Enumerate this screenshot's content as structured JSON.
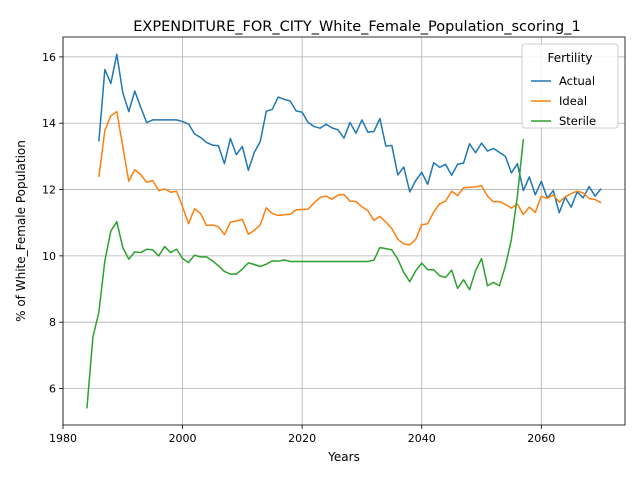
{
  "chart_data": {
    "type": "line",
    "title": "EXPENDITURE_FOR_CITY_White_Female_Population_scoring_1",
    "xlabel": "Years",
    "ylabel": "% of White_Female Population",
    "xlim": [
      1980,
      2074
    ],
    "ylim": [
      4.9,
      16.6
    ],
    "xticks": [
      1980,
      2000,
      2020,
      2040,
      2060
    ],
    "yticks": [
      6,
      8,
      10,
      12,
      14,
      16
    ],
    "grid": true,
    "legend": {
      "title": "Fertility",
      "placement": "top-right"
    },
    "series": [
      {
        "name": "Actual",
        "color": "#1f77b4",
        "x": [
          1986,
          1987,
          1988,
          1989,
          1990,
          1991,
          1992,
          1993,
          1994,
          1995,
          1996,
          1997,
          1998,
          1999,
          2000,
          2001,
          2002,
          2003,
          2004,
          2005,
          2006,
          2007,
          2008,
          2009,
          2010,
          2011,
          2012,
          2013,
          2014,
          2015,
          2016,
          2017,
          2018,
          2019,
          2020,
          2021,
          2022,
          2023,
          2024,
          2025,
          2026,
          2027,
          2028,
          2029,
          2030,
          2031,
          2032,
          2033,
          2034,
          2035,
          2036,
          2037,
          2038,
          2039,
          2040,
          2041,
          2042,
          2043,
          2044,
          2045,
          2046,
          2047,
          2048,
          2049,
          2050,
          2051,
          2052,
          2053,
          2054,
          2055,
          2056,
          2057,
          2058,
          2059,
          2060,
          2061,
          2062,
          2063,
          2064,
          2065,
          2066,
          2067,
          2068,
          2069,
          2070
        ],
        "values": [
          13.45,
          15.62,
          15.2,
          16.08,
          14.92,
          14.35,
          14.97,
          14.48,
          14.02,
          14.1,
          14.1,
          14.1,
          14.1,
          14.1,
          14.05,
          13.98,
          13.68,
          13.57,
          13.42,
          13.34,
          13.32,
          12.78,
          13.54,
          13.05,
          13.3,
          12.58,
          13.12,
          13.45,
          14.36,
          14.42,
          14.79,
          14.72,
          14.67,
          14.37,
          14.33,
          14.02,
          13.9,
          13.85,
          13.97,
          13.86,
          13.8,
          13.55,
          14.02,
          13.7,
          14.1,
          13.73,
          13.75,
          14.14,
          13.31,
          13.33,
          12.44,
          12.68,
          11.93,
          12.27,
          12.52,
          12.16,
          12.81,
          12.67,
          12.76,
          12.43,
          12.76,
          12.8,
          13.38,
          13.11,
          13.4,
          13.16,
          13.24,
          13.12,
          13.0,
          12.5,
          12.78,
          11.97,
          12.38,
          11.84,
          12.25,
          11.74,
          11.97,
          11.3,
          11.77,
          11.47,
          11.93,
          11.75,
          12.09,
          11.8,
          12.03
        ]
      },
      {
        "name": "Ideal",
        "color": "#ff7f0e",
        "x": [
          1986,
          1987,
          1988,
          1989,
          1990,
          1991,
          1992,
          1993,
          1994,
          1995,
          1996,
          1997,
          1998,
          1999,
          2000,
          2001,
          2002,
          2003,
          2004,
          2005,
          2006,
          2007,
          2008,
          2009,
          2010,
          2011,
          2012,
          2013,
          2014,
          2015,
          2016,
          2017,
          2018,
          2019,
          2020,
          2021,
          2022,
          2023,
          2024,
          2025,
          2026,
          2027,
          2028,
          2029,
          2030,
          2031,
          2032,
          2033,
          2034,
          2035,
          2036,
          2037,
          2038,
          2039,
          2040,
          2041,
          2042,
          2043,
          2044,
          2045,
          2046,
          2047,
          2048,
          2049,
          2050,
          2051,
          2052,
          2053,
          2054,
          2055,
          2056,
          2057,
          2058,
          2059,
          2060,
          2061,
          2062,
          2063,
          2064,
          2065,
          2066,
          2067,
          2068,
          2069,
          2070
        ],
        "values": [
          12.38,
          13.78,
          14.22,
          14.35,
          13.3,
          12.25,
          12.6,
          12.45,
          12.22,
          12.27,
          11.97,
          12.02,
          11.92,
          11.95,
          11.48,
          10.97,
          11.42,
          11.28,
          10.92,
          10.93,
          10.88,
          10.64,
          11.02,
          11.05,
          11.1,
          10.65,
          10.77,
          10.94,
          11.45,
          11.28,
          11.22,
          11.24,
          11.25,
          11.39,
          11.4,
          11.41,
          11.6,
          11.76,
          11.8,
          11.71,
          11.83,
          11.85,
          11.65,
          11.64,
          11.48,
          11.36,
          11.07,
          11.19,
          11.02,
          10.82,
          10.5,
          10.36,
          10.33,
          10.5,
          10.94,
          10.97,
          11.32,
          11.57,
          11.65,
          11.95,
          11.82,
          12.05,
          12.07,
          12.08,
          12.12,
          11.8,
          11.63,
          11.64,
          11.55,
          11.44,
          11.56,
          11.25,
          11.47,
          11.31,
          11.8,
          11.73,
          11.84,
          11.62,
          11.78,
          11.88,
          11.95,
          11.9,
          11.73,
          11.7,
          11.6
        ]
      },
      {
        "name": "Sterile",
        "color": "#2ca02c",
        "x": [
          1984,
          1985,
          1986,
          1987,
          1988,
          1989,
          1990,
          1991,
          1992,
          1993,
          1994,
          1995,
          1996,
          1997,
          1998,
          1999,
          2000,
          2001,
          2002,
          2003,
          2004,
          2005,
          2006,
          2007,
          2008,
          2009,
          2010,
          2011,
          2012,
          2013,
          2014,
          2015,
          2016,
          2017,
          2018,
          2019,
          2020,
          2021,
          2022,
          2023,
          2024,
          2025,
          2026,
          2027,
          2028,
          2029,
          2030,
          2031,
          2032,
          2033,
          2034,
          2035,
          2036,
          2037,
          2038,
          2039,
          2040,
          2041,
          2042,
          2043,
          2044,
          2045,
          2046,
          2047,
          2048,
          2049,
          2050,
          2051,
          2052,
          2053,
          2054,
          2055,
          2056,
          2057
        ],
        "values": [
          5.4,
          7.55,
          8.3,
          9.85,
          10.75,
          11.03,
          10.25,
          9.9,
          10.12,
          10.1,
          10.2,
          10.18,
          10.0,
          10.28,
          10.1,
          10.2,
          9.92,
          9.8,
          10.02,
          9.97,
          9.97,
          9.85,
          9.7,
          9.53,
          9.45,
          9.45,
          9.6,
          9.79,
          9.74,
          9.68,
          9.75,
          9.85,
          9.84,
          9.88,
          9.83,
          9.83,
          9.83,
          9.83,
          9.83,
          9.83,
          9.83,
          9.83,
          9.83,
          9.83,
          9.83,
          9.83,
          9.83,
          9.83,
          9.87,
          10.25,
          10.22,
          10.18,
          9.9,
          9.5,
          9.22,
          9.55,
          9.78,
          9.58,
          9.58,
          9.4,
          9.35,
          9.57,
          9.02,
          9.28,
          8.98,
          9.55,
          9.92,
          9.1,
          9.2,
          9.1,
          9.7,
          10.5,
          11.8,
          13.52
        ]
      }
    ]
  }
}
